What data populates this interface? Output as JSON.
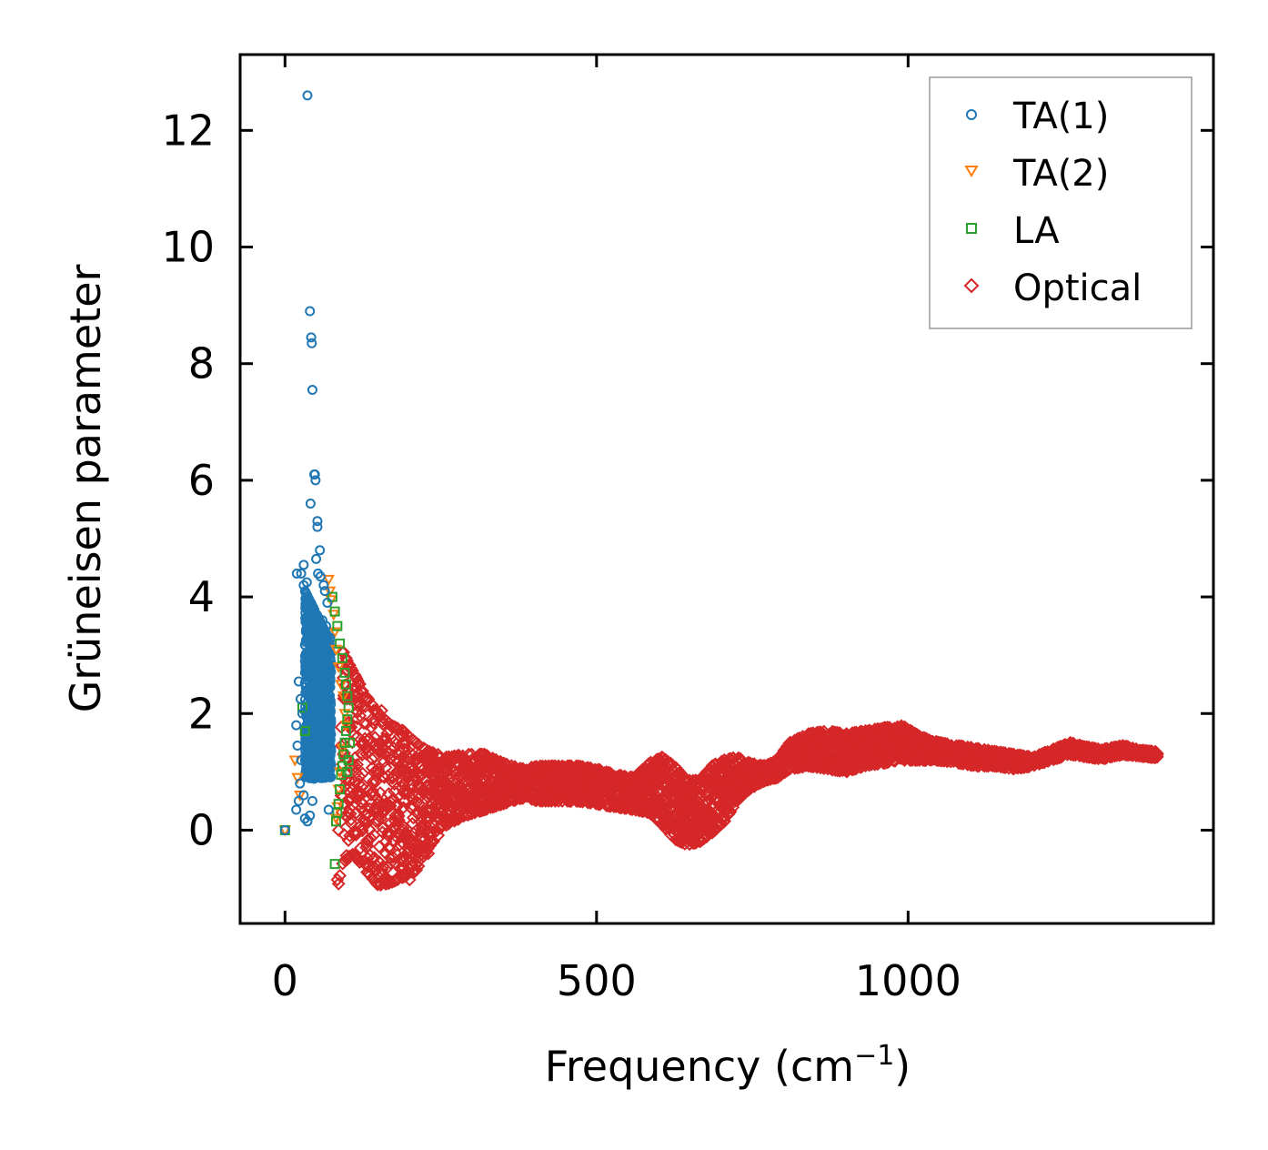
{
  "chart_data": {
    "type": "scatter",
    "xlabel_main": "Frequency (cm",
    "xlabel_sup": "−1",
    "xlabel_end": ")",
    "ylabel": "Grüneisen parameter",
    "xlim": [
      -72,
      1490
    ],
    "ylim": [
      -1.6,
      13.3
    ],
    "xticks": [
      0,
      500,
      1000
    ],
    "xtick_labels": [
      "0",
      "500",
      "1000"
    ],
    "yticks": [
      0,
      2,
      4,
      6,
      8,
      10,
      12
    ],
    "ytick_labels": [
      "0",
      "2",
      "4",
      "6",
      "8",
      "10",
      "12"
    ],
    "legend_position": "top-right",
    "series": [
      {
        "name": "TA(1)",
        "marker": "circle",
        "color": "#1f77b4",
        "points": [
          [
            0,
            0
          ],
          [
            36,
            12.6
          ],
          [
            40,
            8.9
          ],
          [
            42,
            8.45
          ],
          [
            43,
            8.35
          ],
          [
            44,
            7.55
          ],
          [
            47,
            6.1
          ],
          [
            48,
            6.1
          ],
          [
            49,
            6.0
          ],
          [
            41,
            5.6
          ],
          [
            52,
            5.3
          ],
          [
            52,
            5.2
          ],
          [
            50,
            4.65
          ],
          [
            56,
            4.8
          ],
          [
            30,
            4.55
          ],
          [
            26,
            4.4
          ],
          [
            19,
            4.4
          ],
          [
            35,
            4.25
          ],
          [
            53,
            4.4
          ],
          [
            57,
            4.35
          ],
          [
            62,
            4.2
          ],
          [
            30,
            4.2
          ],
          [
            38,
            3.7
          ],
          [
            34,
            3.4
          ],
          [
            32,
            2.9
          ],
          [
            22,
            2.55
          ],
          [
            25,
            2.25
          ],
          [
            28,
            2.0
          ],
          [
            18,
            1.8
          ],
          [
            20,
            1.45
          ],
          [
            26,
            1.2
          ],
          [
            24,
            0.8
          ],
          [
            30,
            0.6
          ],
          [
            22,
            0.5
          ],
          [
            18,
            0.35
          ],
          [
            32,
            0.2
          ],
          [
            36,
            0.15
          ],
          [
            40,
            0.25
          ],
          [
            44,
            0.5
          ],
          [
            70,
            0.35
          ],
          [
            72,
            3.3
          ],
          [
            68,
            3.9
          ],
          [
            64,
            4.1
          ],
          [
            66,
            3.5
          ],
          [
            60,
            3.6
          ]
        ],
        "band": {
          "x_from": 32,
          "x_to": 74,
          "y_low_at_start": 0.3,
          "y_high_at_start": 4.1,
          "y_low_at_end": 0.5,
          "y_high_at_end": 3.2
        }
      },
      {
        "name": "TA(2)",
        "marker": "triangle-down",
        "color": "#ff7f0e",
        "points": [
          [
            0,
            0
          ],
          [
            16,
            1.2
          ],
          [
            20,
            0.9
          ],
          [
            24,
            0.6
          ],
          [
            70,
            4.3
          ],
          [
            72,
            4.1
          ],
          [
            74,
            3.95
          ],
          [
            78,
            3.7
          ],
          [
            80,
            3.4
          ],
          [
            82,
            3.1
          ],
          [
            86,
            2.8
          ],
          [
            90,
            2.5
          ],
          [
            94,
            2.3
          ],
          [
            96,
            2.0
          ],
          [
            98,
            1.8
          ],
          [
            92,
            1.4
          ],
          [
            88,
            1.0
          ],
          [
            86,
            0.7
          ],
          [
            84,
            0.4
          ],
          [
            82,
            0.2
          ]
        ]
      },
      {
        "name": "LA",
        "marker": "square",
        "color": "#2ca02c",
        "points": [
          [
            0,
            0
          ],
          [
            80,
            -0.58
          ],
          [
            82,
            0.15
          ],
          [
            84,
            0.3
          ],
          [
            86,
            0.45
          ],
          [
            88,
            0.7
          ],
          [
            90,
            0.95
          ],
          [
            92,
            1.1
          ],
          [
            94,
            1.3
          ],
          [
            96,
            1.5
          ],
          [
            98,
            1.7
          ],
          [
            100,
            1.9
          ],
          [
            102,
            2.1
          ],
          [
            100,
            2.3
          ],
          [
            98,
            2.5
          ],
          [
            96,
            2.7
          ],
          [
            92,
            2.95
          ],
          [
            88,
            3.2
          ],
          [
            84,
            3.5
          ],
          [
            80,
            3.75
          ],
          [
            76,
            4.0
          ],
          [
            28,
            2.1
          ],
          [
            32,
            1.7
          ],
          [
            104,
            1.5
          ],
          [
            102,
            1.2
          ],
          [
            100,
            1.0
          ]
        ]
      },
      {
        "name": "Optical",
        "marker": "diamond",
        "color": "#d62728",
        "points": [
          [
            84,
            -0.85
          ],
          [
            86,
            -0.92
          ],
          [
            88,
            -0.78
          ],
          [
            86,
            0.0
          ],
          [
            90,
            0.15
          ],
          [
            94,
            3.05
          ],
          [
            98,
            2.95
          ],
          [
            102,
            2.8
          ],
          [
            155,
            2.05
          ],
          [
            195,
            1.5
          ],
          [
            215,
            1.3
          ],
          [
            230,
            -0.4
          ],
          [
            200,
            -0.85
          ]
        ],
        "band": [
          [
            90,
            -0.6,
            3.1
          ],
          [
            110,
            -0.4,
            2.7
          ],
          [
            130,
            -0.7,
            2.3
          ],
          [
            150,
            -0.95,
            2.0
          ],
          [
            170,
            -0.9,
            1.8
          ],
          [
            190,
            -0.8,
            1.7
          ],
          [
            210,
            -0.7,
            1.5
          ],
          [
            230,
            -0.3,
            1.35
          ],
          [
            260,
            0.1,
            1.25
          ],
          [
            290,
            0.25,
            1.3
          ],
          [
            320,
            0.35,
            1.3
          ],
          [
            350,
            0.45,
            1.15
          ],
          [
            380,
            0.55,
            1.05
          ],
          [
            410,
            0.5,
            1.1
          ],
          [
            440,
            0.5,
            1.1
          ],
          [
            470,
            0.5,
            1.1
          ],
          [
            500,
            0.45,
            1.05
          ],
          [
            530,
            0.4,
            0.95
          ],
          [
            560,
            0.35,
            0.9
          ],
          [
            585,
            0.3,
            1.15
          ],
          [
            605,
            0.1,
            1.25
          ],
          [
            625,
            -0.15,
            1.1
          ],
          [
            645,
            -0.25,
            0.85
          ],
          [
            665,
            -0.2,
            0.85
          ],
          [
            685,
            -0.05,
            1.1
          ],
          [
            705,
            0.15,
            1.2
          ],
          [
            725,
            0.5,
            1.25
          ],
          [
            745,
            0.7,
            1.15
          ],
          [
            770,
            0.85,
            1.1
          ],
          [
            790,
            0.9,
            1.2
          ],
          [
            810,
            1.05,
            1.5
          ],
          [
            840,
            1.1,
            1.65
          ],
          [
            870,
            1.05,
            1.7
          ],
          [
            900,
            1.0,
            1.65
          ],
          [
            930,
            1.1,
            1.7
          ],
          [
            960,
            1.15,
            1.75
          ],
          [
            990,
            1.2,
            1.8
          ],
          [
            1020,
            1.2,
            1.6
          ],
          [
            1050,
            1.2,
            1.5
          ],
          [
            1080,
            1.15,
            1.45
          ],
          [
            1110,
            1.1,
            1.4
          ],
          [
            1140,
            1.1,
            1.35
          ],
          [
            1170,
            1.05,
            1.3
          ],
          [
            1200,
            1.1,
            1.25
          ],
          [
            1260,
            1.3,
            1.5
          ],
          [
            1290,
            1.25,
            1.42
          ],
          [
            1310,
            1.22,
            1.38
          ],
          [
            1345,
            1.3,
            1.45
          ],
          [
            1370,
            1.27,
            1.38
          ],
          [
            1400,
            1.24,
            1.34
          ]
        ]
      }
    ]
  }
}
